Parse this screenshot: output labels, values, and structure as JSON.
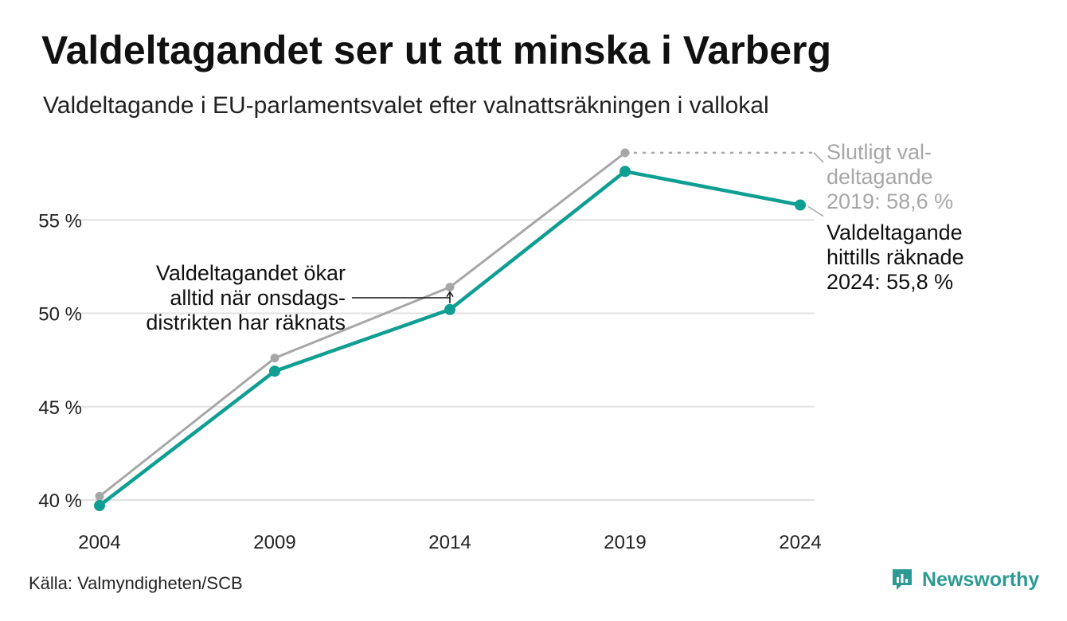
{
  "title": "Valdeltagandet ser ut att minska i Varberg",
  "subtitle": "Valdeltagande i EU-parlamentsvalet efter valnattsräkningen i vallokal",
  "source": "Källa: Valmyndigheten/SCB",
  "brand": "Newsworthy",
  "colors": {
    "teal": "#0f9e92",
    "gray": "#a7a7a7",
    "grid": "#e2e2e2",
    "brand": "#2e9a94"
  },
  "chart_data": {
    "type": "line",
    "x": [
      2004,
      2009,
      2014,
      2019,
      2024
    ],
    "ylim": [
      39,
      59
    ],
    "yticks": [
      40,
      45,
      50,
      55
    ],
    "ytick_labels": [
      "40 %",
      "45 %",
      "50 %",
      "55 %"
    ],
    "xtick_labels": [
      "2004",
      "2009",
      "2014",
      "2019",
      "2024"
    ],
    "grid": true,
    "series": [
      {
        "key": "final",
        "color": "#a7a7a7",
        "values": [
          40.2,
          47.6,
          51.4,
          58.6,
          null
        ]
      },
      {
        "key": "election_night",
        "color": "#0f9e92",
        "values": [
          39.7,
          46.9,
          50.2,
          57.6,
          55.8
        ]
      }
    ],
    "annotations": {
      "final_label": [
        "Slutligt val-",
        "deltagande",
        "2019: 58,6 %"
      ],
      "current_label": [
        "Valdeltagande",
        "hittills räknade",
        "2024: 55,8 %"
      ],
      "note_label": [
        "Valdeltagandet ökar",
        "alltid när onsdags-",
        "distrikten har räknats"
      ]
    }
  }
}
